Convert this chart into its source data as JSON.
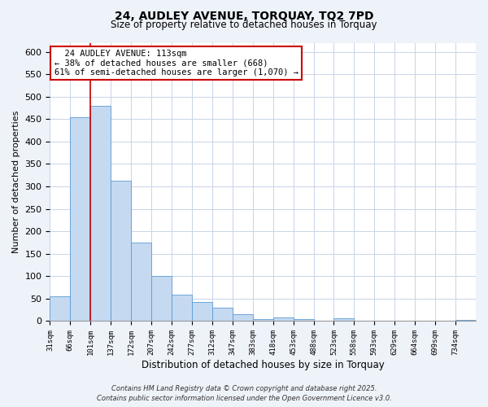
{
  "title_line1": "24, AUDLEY AVENUE, TORQUAY, TQ2 7PD",
  "title_line2": "Size of property relative to detached houses in Torquay",
  "xlabel": "Distribution of detached houses by size in Torquay",
  "ylabel": "Number of detached properties",
  "bin_labels": [
    "31sqm",
    "66sqm",
    "101sqm",
    "137sqm",
    "172sqm",
    "207sqm",
    "242sqm",
    "277sqm",
    "312sqm",
    "347sqm",
    "383sqm",
    "418sqm",
    "453sqm",
    "488sqm",
    "523sqm",
    "558sqm",
    "593sqm",
    "629sqm",
    "664sqm",
    "699sqm",
    "734sqm"
  ],
  "bar_heights": [
    55,
    455,
    480,
    313,
    175,
    100,
    58,
    42,
    30,
    15,
    5,
    9,
    5,
    0,
    7,
    0,
    0,
    0,
    0,
    0,
    2
  ],
  "bar_color": "#c5d9f1",
  "bar_edge_color": "#5b9bd5",
  "ylim": [
    0,
    620
  ],
  "yticks": [
    0,
    50,
    100,
    150,
    200,
    250,
    300,
    350,
    400,
    450,
    500,
    550,
    600
  ],
  "property_line_x": 2,
  "property_line_color": "#cc0000",
  "annotation_title": "24 AUDLEY AVENUE: 113sqm",
  "annotation_line1": "← 38% of detached houses are smaller (668)",
  "annotation_line2": "61% of semi-detached houses are larger (1,070) →",
  "annotation_box_color": "#ffffff",
  "annotation_box_edge": "#cc0000",
  "footer_line1": "Contains HM Land Registry data © Crown copyright and database right 2025.",
  "footer_line2": "Contains public sector information licensed under the Open Government Licence v3.0.",
  "background_color": "#eef2f9",
  "plot_bg_color": "#ffffff",
  "grid_color": "#c8d4e8"
}
